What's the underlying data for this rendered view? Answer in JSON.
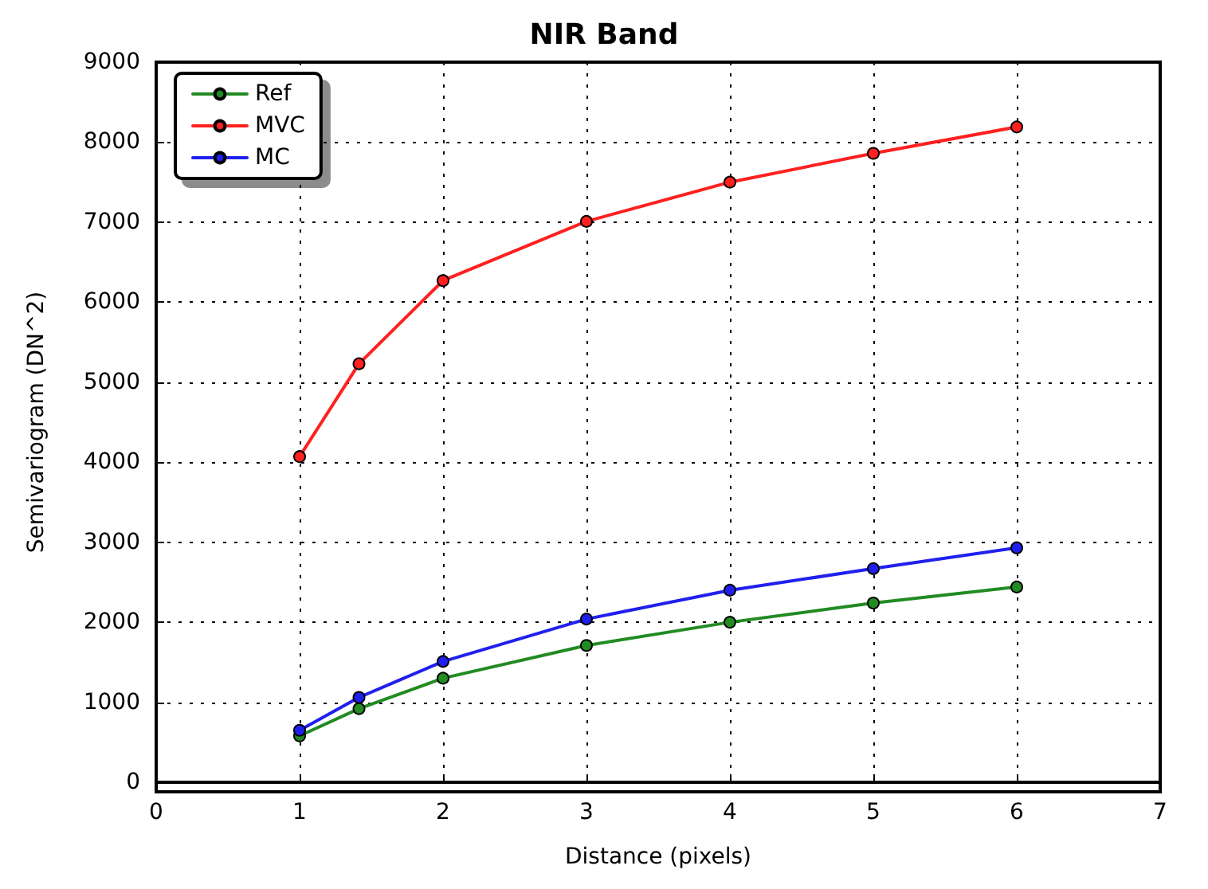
{
  "chart_data": {
    "type": "line",
    "title": "NIR Band",
    "xlabel": "Distance (pixels)",
    "ylabel": "Semivariogram (DN^2)",
    "x": [
      1,
      1.414,
      2,
      3,
      4,
      5,
      6
    ],
    "series": [
      {
        "name": "Ref",
        "color": "#228b22",
        "values": [
          580,
          920,
          1300,
          1710,
          2000,
          2240,
          2440
        ]
      },
      {
        "name": "MVC",
        "color": "#ff2020",
        "values": [
          4070,
          5230,
          6270,
          7010,
          7500,
          7860,
          8190
        ]
      },
      {
        "name": "MC",
        "color": "#2020ee",
        "values": [
          650,
          1060,
          1510,
          2040,
          2400,
          2670,
          2930
        ]
      }
    ],
    "xlim": [
      0,
      7
    ],
    "xticks": [
      0,
      1,
      2,
      3,
      4,
      5,
      6,
      7
    ],
    "ylim": [
      0,
      9000
    ],
    "yticks": [
      0,
      1000,
      2000,
      3000,
      4000,
      5000,
      6000,
      7000,
      8000,
      9000
    ],
    "grid": true,
    "legend": "top left",
    "marker": "circle",
    "line_style": "solid"
  }
}
